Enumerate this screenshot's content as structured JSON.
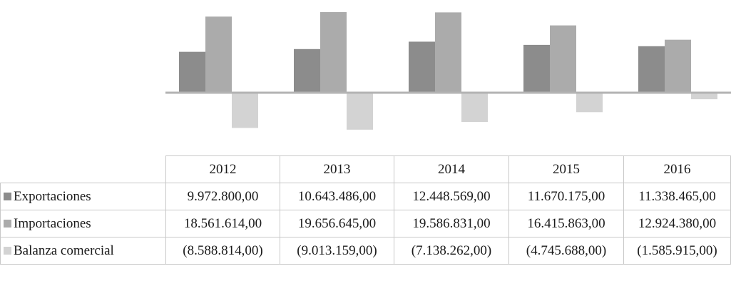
{
  "chart_data": {
    "type": "bar",
    "categories": [
      "2012",
      "2013",
      "2014",
      "2015",
      "2016"
    ],
    "series": [
      {
        "name": "Exportaciones",
        "color": "#8c8c8c",
        "values": [
          9972800.0,
          10643486.0,
          12448569.0,
          11670175.0,
          11338465.0
        ],
        "labels": [
          "9.972.800,00",
          "10.643.486,00",
          "12.448.569,00",
          "11.670.175,00",
          "11.338.465,00"
        ]
      },
      {
        "name": "Importaciones",
        "color": "#ababab",
        "values": [
          18561614.0,
          19656645.0,
          19586831.0,
          16415863.0,
          12924380.0
        ],
        "labels": [
          "18.561.614,00",
          "19.656.645,00",
          "19.586.831,00",
          "16.415.863,00",
          "12.924.380,00"
        ]
      },
      {
        "name": "Balanza comercial",
        "color": "#d3d3d3",
        "values": [
          -8588814.0,
          -9013159.0,
          -7138262.0,
          -4745688.0,
          -1585915.0
        ],
        "labels": [
          "(8.588.814,00)",
          "(9.013.159,00)",
          "(7.138.262,00)",
          "(4.745.688,00)",
          "(1.585.915,00)"
        ]
      }
    ],
    "title": "",
    "xlabel": "",
    "ylabel": "",
    "ylim": [
      -10000000,
      20000000
    ],
    "grid": false,
    "legend": "data-table-below"
  }
}
